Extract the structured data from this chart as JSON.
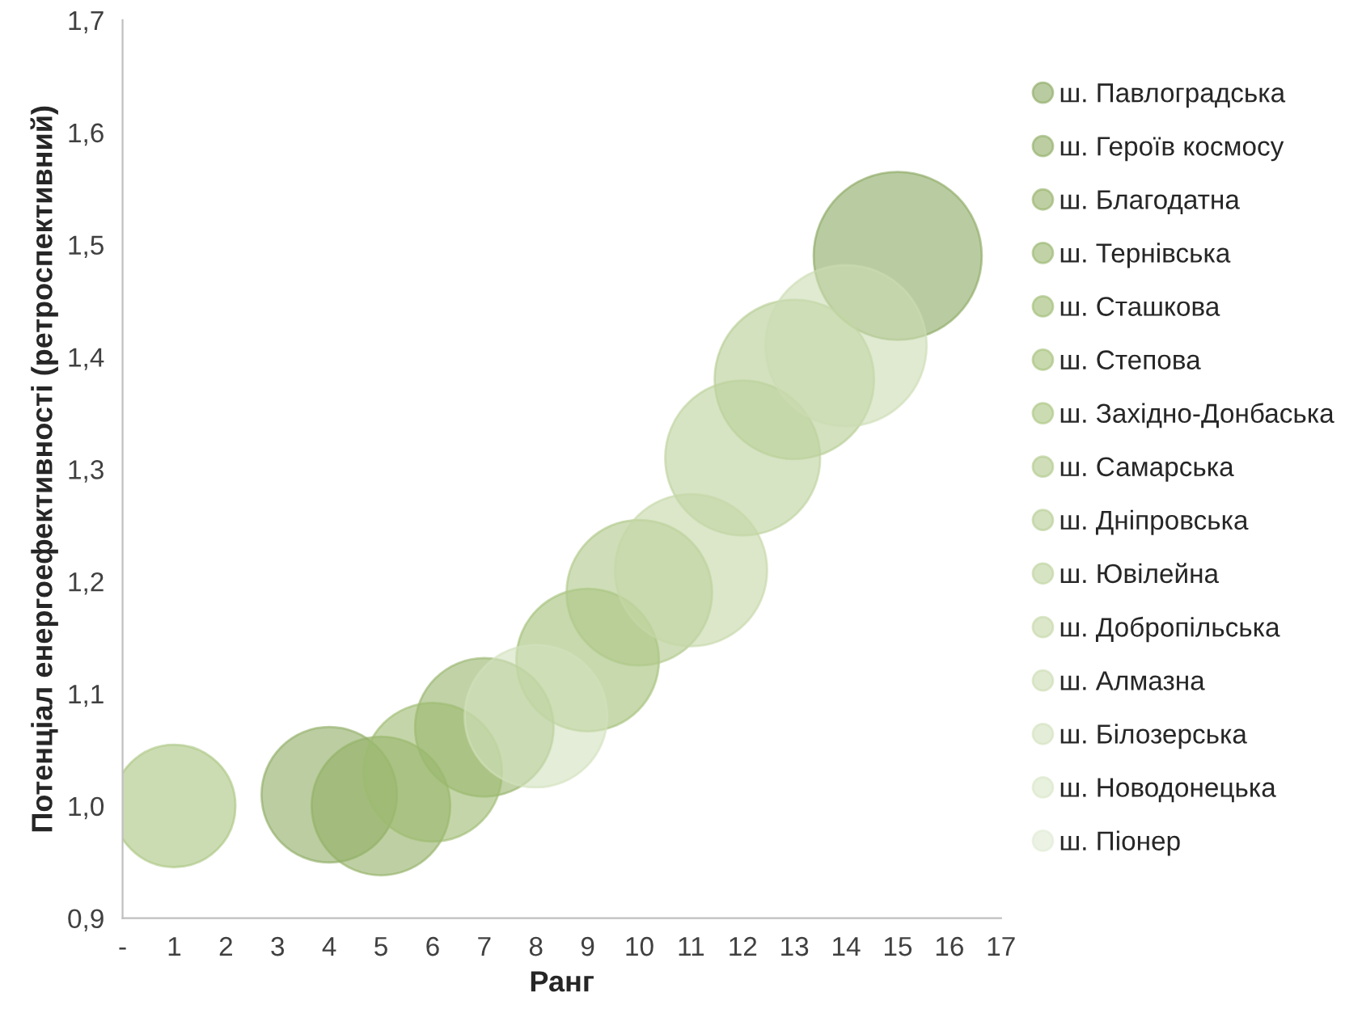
{
  "chart_data": {
    "type": "bubble",
    "xlabel": "Ранг",
    "ylabel": "Потенціал енергоефективності (ретроспективний)",
    "xlim": [
      0,
      17
    ],
    "xticks": [
      {
        "value": 0,
        "label": "-"
      },
      1,
      2,
      3,
      4,
      5,
      6,
      7,
      8,
      9,
      10,
      11,
      12,
      13,
      14,
      15,
      16,
      17
    ],
    "ylim": [
      0.9,
      1.7
    ],
    "yticks": [
      {
        "value": 0.9,
        "label": "0,9"
      },
      {
        "value": 1.0,
        "label": "1,0"
      },
      {
        "value": 1.1,
        "label": "1,1"
      },
      {
        "value": 1.2,
        "label": "1,2"
      },
      {
        "value": 1.3,
        "label": "1,3"
      },
      {
        "value": 1.4,
        "label": "1,4"
      },
      {
        "value": 1.5,
        "label": "1,5"
      },
      {
        "value": 1.6,
        "label": "1,6"
      },
      {
        "value": 1.7,
        "label": "1,7"
      }
    ],
    "grid": false,
    "legend": "right",
    "series": [
      {
        "name": "ш. Павлоградська",
        "color": "#8aa860",
        "x": [
          15
        ],
        "values": [
          1.49
        ],
        "sizes": [
          1
        ]
      },
      {
        "name": "ш. Героїв космосу",
        "color": "#8eab62",
        "x": [
          4
        ],
        "values": [
          1.01
        ],
        "sizes": [
          0.65
        ]
      },
      {
        "name": "ш. Благодатна",
        "color": "#92b066",
        "x": [
          5
        ],
        "values": [
          1.0
        ],
        "sizes": [
          0.68
        ]
      },
      {
        "name": "ш. Тернівська",
        "color": "#96b46a",
        "x": [
          7
        ],
        "values": [
          1.07
        ],
        "sizes": [
          0.68
        ]
      },
      {
        "name": "ш. Сташкова",
        "color": "#9cba70",
        "x": [
          6
        ],
        "values": [
          1.03
        ],
        "sizes": [
          0.68
        ]
      },
      {
        "name": "ш. Степова",
        "color": "#a2bf77",
        "x": [
          9
        ],
        "values": [
          1.13
        ],
        "sizes": [
          0.72
        ]
      },
      {
        "name": "ш. Західно-Донбаська",
        "color": "#a8c47f",
        "x": [
          1
        ],
        "values": [
          1.0
        ],
        "sizes": [
          0.53
        ]
      },
      {
        "name": "ш. Самарська",
        "color": "#afc888",
        "x": [
          10
        ],
        "values": [
          1.19
        ],
        "sizes": [
          0.75
        ]
      },
      {
        "name": "ш. Дніпровська",
        "color": "#b6cd92",
        "x": [
          13
        ],
        "values": [
          1.38
        ],
        "sizes": [
          0.9
        ]
      },
      {
        "name": "ш. Ювілейна",
        "color": "#bdd29c",
        "x": [
          12
        ],
        "values": [
          1.31
        ],
        "sizes": [
          0.85
        ]
      },
      {
        "name": "ш. Добропільська",
        "color": "#c4d7a7",
        "x": [
          11
        ],
        "values": [
          1.21
        ],
        "sizes": [
          0.82
        ]
      },
      {
        "name": "ш. Алмазна",
        "color": "#cbdcb2",
        "x": [
          14
        ],
        "values": [
          1.41
        ],
        "sizes": [
          0.92
        ]
      },
      {
        "name": "ш. Білозерська",
        "color": "#d2e1bd",
        "x": [
          8
        ],
        "values": [
          1.08
        ],
        "sizes": [
          0.72
        ]
      },
      {
        "name": "ш. Новодонецька",
        "color": "#d9e6c8",
        "x": [
          null
        ],
        "values": [
          null
        ],
        "sizes": [
          null
        ]
      },
      {
        "name": "ш. Піонер",
        "color": "#e0ebd3",
        "x": [
          null
        ],
        "values": [
          null
        ],
        "sizes": [
          null
        ]
      }
    ]
  }
}
